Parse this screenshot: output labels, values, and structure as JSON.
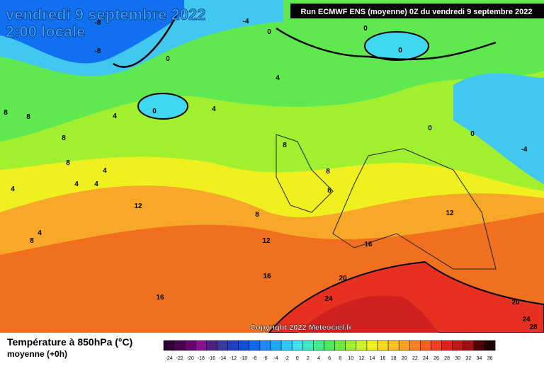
{
  "header": {
    "date": "vendredi 9 septembre 2022",
    "time": "2:00 locale",
    "run": "Run ECMWF ENS (moyenne) 0Z du vendredi 9 septembre 2022"
  },
  "copyright": "Copyright 2022 Meteociel.fr",
  "contour_labels": [
    -8,
    -4,
    0,
    0,
    -8,
    0,
    0,
    4,
    0,
    4,
    8,
    8,
    4,
    8,
    4,
    4,
    4,
    8,
    12,
    4,
    8,
    12,
    8,
    16,
    12,
    16,
    20,
    16,
    24,
    20,
    24,
    28,
    0,
    0,
    -4,
    4,
    8,
    8,
    8
  ],
  "legend": {
    "title": "Température à 850hPa (°C)",
    "subtitle": "moyenne   (+0h)",
    "scale": [
      -24,
      -22,
      -20,
      -18,
      -16,
      -14,
      -12,
      -10,
      -8,
      -6,
      -4,
      -2,
      0,
      2,
      4,
      6,
      8,
      10,
      12,
      14,
      16,
      18,
      20,
      22,
      24,
      26,
      28,
      30,
      32,
      34,
      36
    ],
    "colors": [
      "#2a0030",
      "#4a0050",
      "#6a0070",
      "#8a1090",
      "#4a2080",
      "#3a3aa0",
      "#2040c0",
      "#1050d8",
      "#1068f0",
      "#2088f8",
      "#20a8f8",
      "#30c8f8",
      "#40e0f0",
      "#40e8c0",
      "#40e890",
      "#50e860",
      "#70e840",
      "#a0f030",
      "#d0f030",
      "#f0f020",
      "#f8d820",
      "#f8c020",
      "#f8a020",
      "#f88020",
      "#f86020",
      "#f04020",
      "#e02020",
      "#c01818",
      "#a01010",
      "#500000",
      "#200000"
    ]
  }
}
